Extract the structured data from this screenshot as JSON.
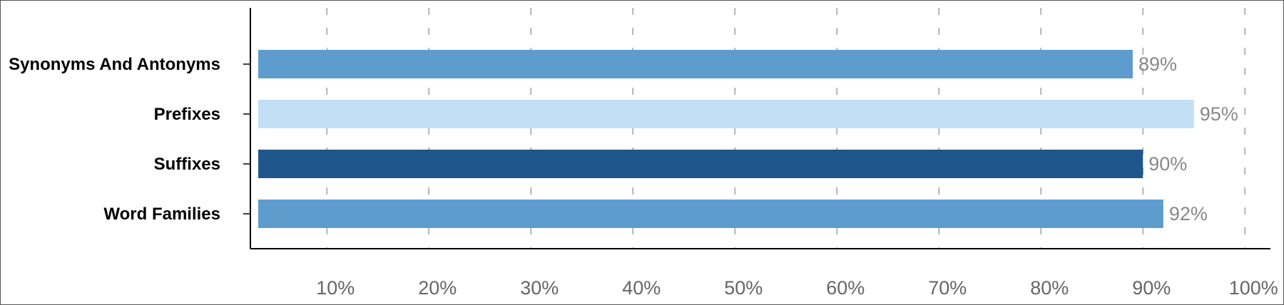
{
  "chart_data": {
    "type": "bar",
    "orientation": "horizontal",
    "categories": [
      "Synonyms And Antonyms",
      "Prefixes",
      "Suffixes",
      "Word Families"
    ],
    "values": [
      89,
      95,
      90,
      92
    ],
    "value_labels": [
      "89%",
      "95%",
      "90%",
      "92%"
    ],
    "colors": [
      "#5e9cce",
      "#c2dff6",
      "#1f568b",
      "#5e9cce"
    ],
    "x_ticks": [
      10,
      20,
      30,
      40,
      50,
      60,
      70,
      80,
      90,
      100
    ],
    "x_tick_labels": [
      "10%",
      "20%",
      "30%",
      "40%",
      "50%",
      "60%",
      "70%",
      "80%",
      "90%",
      "100%"
    ],
    "xlim": [
      2.5,
      102.5
    ],
    "grid": "vertical-dashed",
    "title": "",
    "xlabel": "",
    "ylabel": "",
    "legend": "none"
  }
}
